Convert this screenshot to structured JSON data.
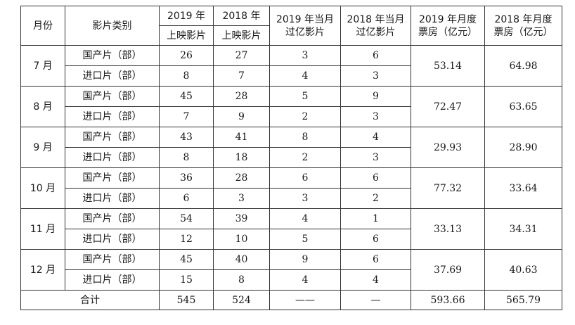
{
  "header": {
    "month": "月份",
    "category": "影片类别",
    "released_2019_top": "2019 年",
    "released_2019_bottom": "上映影片",
    "released_2018_top": "2018 年",
    "released_2018_bottom": "上映影片",
    "over100m_2019_line1": "2019 年当月",
    "over100m_2019_line2": "过亿影片",
    "over100m_2018_line1": "2018 年当月",
    "over100m_2018_line2": "过亿影片",
    "boxoffice_2019_line1": "2019 年月度",
    "boxoffice_2019_line2": "票房（亿元）",
    "boxoffice_2018_line1": "2018 年月度",
    "boxoffice_2018_line2": "票房（亿元）"
  },
  "months": [
    {
      "month": "7 月",
      "boxoffice_2019": "53.14",
      "boxoffice_2018": "64.98",
      "rows": [
        {
          "type": "国产片（部）",
          "released_2019": "26",
          "released_2018": "27",
          "over100m_2019": "3",
          "over100m_2018": "6"
        },
        {
          "type": "进口片（部）",
          "released_2019": "8",
          "released_2018": "7",
          "over100m_2019": "4",
          "over100m_2018": "3"
        }
      ]
    },
    {
      "month": "8 月",
      "boxoffice_2019": "72.47",
      "boxoffice_2018": "63.65",
      "rows": [
        {
          "type": "国产片（部）",
          "released_2019": "45",
          "released_2018": "28",
          "over100m_2019": "5",
          "over100m_2018": "9"
        },
        {
          "type": "进口片（部）",
          "released_2019": "7",
          "released_2018": "9",
          "over100m_2019": "2",
          "over100m_2018": "3"
        }
      ]
    },
    {
      "month": "9 月",
      "boxoffice_2019": "29.93",
      "boxoffice_2018": "28.90",
      "rows": [
        {
          "type": "国产片（部）",
          "released_2019": "43",
          "released_2018": "41",
          "over100m_2019": "8",
          "over100m_2018": "4"
        },
        {
          "type": "进口片（部）",
          "released_2019": "8",
          "released_2018": "18",
          "over100m_2019": "2",
          "over100m_2018": "3"
        }
      ]
    },
    {
      "month": "10 月",
      "boxoffice_2019": "77.32",
      "boxoffice_2018": "33.64",
      "rows": [
        {
          "type": "国产片（部）",
          "released_2019": "36",
          "released_2018": "28",
          "over100m_2019": "6",
          "over100m_2018": "6"
        },
        {
          "type": "进口片（部）",
          "released_2019": "6",
          "released_2018": "3",
          "over100m_2019": "3",
          "over100m_2018": "2"
        }
      ]
    },
    {
      "month": "11 月",
      "boxoffice_2019": "33.13",
      "boxoffice_2018": "34.31",
      "rows": [
        {
          "type": "国产片（部）",
          "released_2019": "54",
          "released_2018": "39",
          "over100m_2019": "4",
          "over100m_2018": "1"
        },
        {
          "type": "进口片（部）",
          "released_2019": "12",
          "released_2018": "10",
          "over100m_2019": "5",
          "over100m_2018": "6"
        }
      ]
    },
    {
      "month": "12 月",
      "boxoffice_2019": "37.69",
      "boxoffice_2018": "40.63",
      "rows": [
        {
          "type": "国产片（部）",
          "released_2019": "45",
          "released_2018": "40",
          "over100m_2019": "9",
          "over100m_2018": "6"
        },
        {
          "type": "进口片（部）",
          "released_2019": "15",
          "released_2018": "8",
          "over100m_2019": "4",
          "over100m_2018": "4"
        }
      ]
    }
  ],
  "total": {
    "label": "合计",
    "released_2019": "545",
    "released_2018": "524",
    "over100m_2019": "——",
    "over100m_2018": "—",
    "boxoffice_2019": "593.66",
    "boxoffice_2018": "565.79"
  }
}
